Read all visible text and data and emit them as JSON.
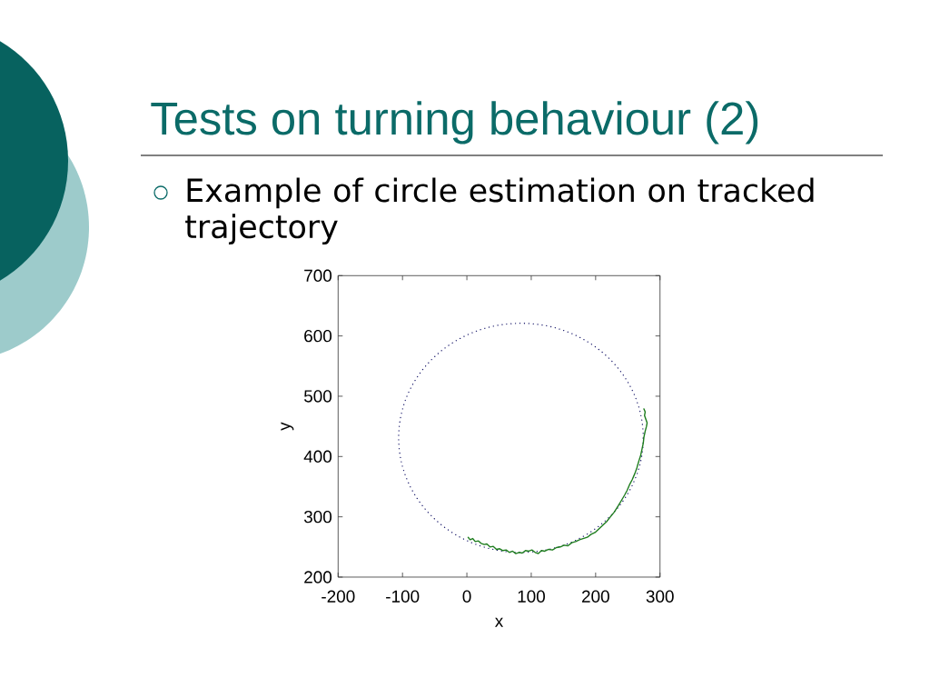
{
  "chart_data": {
    "type": "line",
    "title": "Tests on turning behaviour (2)",
    "subtitle": "Example of circle estimation on tracked trajectory",
    "xlabel": "x",
    "ylabel": "y",
    "xlim": [
      -200,
      300
    ],
    "ylim": [
      200,
      700
    ],
    "xticks": [
      -200,
      -100,
      0,
      100,
      200,
      300
    ],
    "yticks": [
      200,
      300,
      400,
      500,
      600,
      700
    ],
    "series": [
      {
        "color": "#1e7d1e",
        "line_style": "solid",
        "x": [
          2,
          5,
          9,
          13,
          18,
          22,
          27,
          31,
          36,
          41,
          46,
          51,
          56,
          61,
          66,
          71,
          76,
          81,
          86,
          91,
          96,
          101,
          106,
          111,
          116,
          121,
          127,
          133,
          139,
          145,
          151,
          157,
          163,
          169,
          175,
          181,
          187,
          193,
          199,
          205,
          211,
          217,
          223,
          229,
          235,
          240,
          245,
          249,
          253,
          257,
          261,
          264,
          267,
          270,
          272,
          274,
          275,
          277,
          279,
          280,
          278,
          276,
          277,
          275
        ],
        "values": [
          266,
          262,
          264,
          259,
          260,
          256,
          254,
          255,
          250,
          251,
          246,
          247,
          244,
          245,
          241,
          243,
          239,
          241,
          240,
          244,
          243,
          245,
          241,
          239,
          244,
          243,
          246,
          245,
          249,
          250,
          253,
          252,
          257,
          259,
          262,
          264,
          266,
          271,
          274,
          280,
          286,
          292,
          300,
          308,
          318,
          327,
          336,
          344,
          354,
          362,
          372,
          381,
          392,
          402,
          412,
          422,
          432,
          442,
          450,
          456,
          462,
          468,
          474,
          479
        ]
      }
    ]
  }
}
